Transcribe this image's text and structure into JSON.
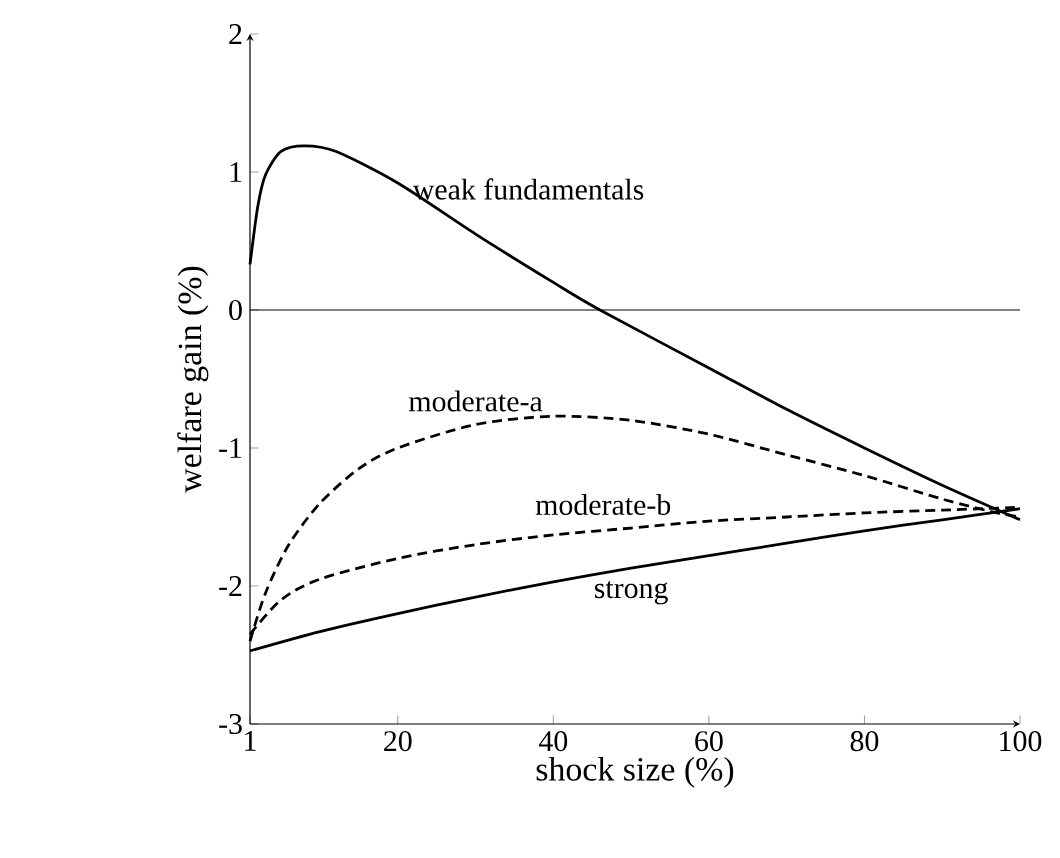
{
  "chart_data": {
    "type": "line",
    "xlabel": "shock size (%)",
    "ylabel": "welfare gain (%)",
    "xlim": [
      1,
      100
    ],
    "ylim": [
      -3,
      2
    ],
    "xticks": [
      1,
      20,
      40,
      60,
      80,
      100
    ],
    "yticks": [
      -3,
      -2,
      -1,
      0,
      1,
      2
    ],
    "grid": false,
    "ref_lines": [
      {
        "axis": "y",
        "value": 0,
        "color": "#000000"
      }
    ],
    "series": [
      {
        "name": "weak fundamentals",
        "color": "#000000",
        "line_style": "solid",
        "x": [
          1,
          2,
          3,
          5,
          8,
          12,
          20,
          30,
          40,
          46,
          60,
          70,
          80,
          90,
          100
        ],
        "values": [
          0.33,
          0.75,
          0.98,
          1.15,
          1.19,
          1.15,
          0.92,
          0.55,
          0.2,
          0,
          -0.42,
          -0.72,
          -1.0,
          -1.27,
          -1.52
        ]
      },
      {
        "name": "moderate-a",
        "color": "#000000",
        "line_style": "dashed",
        "x": [
          1,
          3,
          6,
          10,
          15,
          20,
          30,
          40,
          50,
          60,
          70,
          80,
          90,
          97,
          100
        ],
        "values": [
          -2.4,
          -2.05,
          -1.7,
          -1.4,
          -1.15,
          -1.0,
          -0.83,
          -0.77,
          -0.8,
          -0.9,
          -1.05,
          -1.2,
          -1.37,
          -1.47,
          -1.5
        ]
      },
      {
        "name": "moderate-b",
        "color": "#000000",
        "line_style": "dashed",
        "x": [
          1,
          5,
          10,
          20,
          30,
          40,
          50,
          60,
          70,
          80,
          90,
          100
        ],
        "values": [
          -2.35,
          -2.1,
          -1.95,
          -1.8,
          -1.7,
          -1.63,
          -1.58,
          -1.53,
          -1.5,
          -1.47,
          -1.45,
          -1.43
        ]
      },
      {
        "name": "strong",
        "color": "#000000",
        "line_style": "solid",
        "x": [
          1,
          10,
          20,
          30,
          40,
          50,
          60,
          70,
          80,
          90,
          100
        ],
        "values": [
          -2.47,
          -2.33,
          -2.2,
          -2.08,
          -1.97,
          -1.87,
          -1.78,
          -1.69,
          -1.6,
          -1.52,
          -1.44
        ]
      }
    ]
  }
}
